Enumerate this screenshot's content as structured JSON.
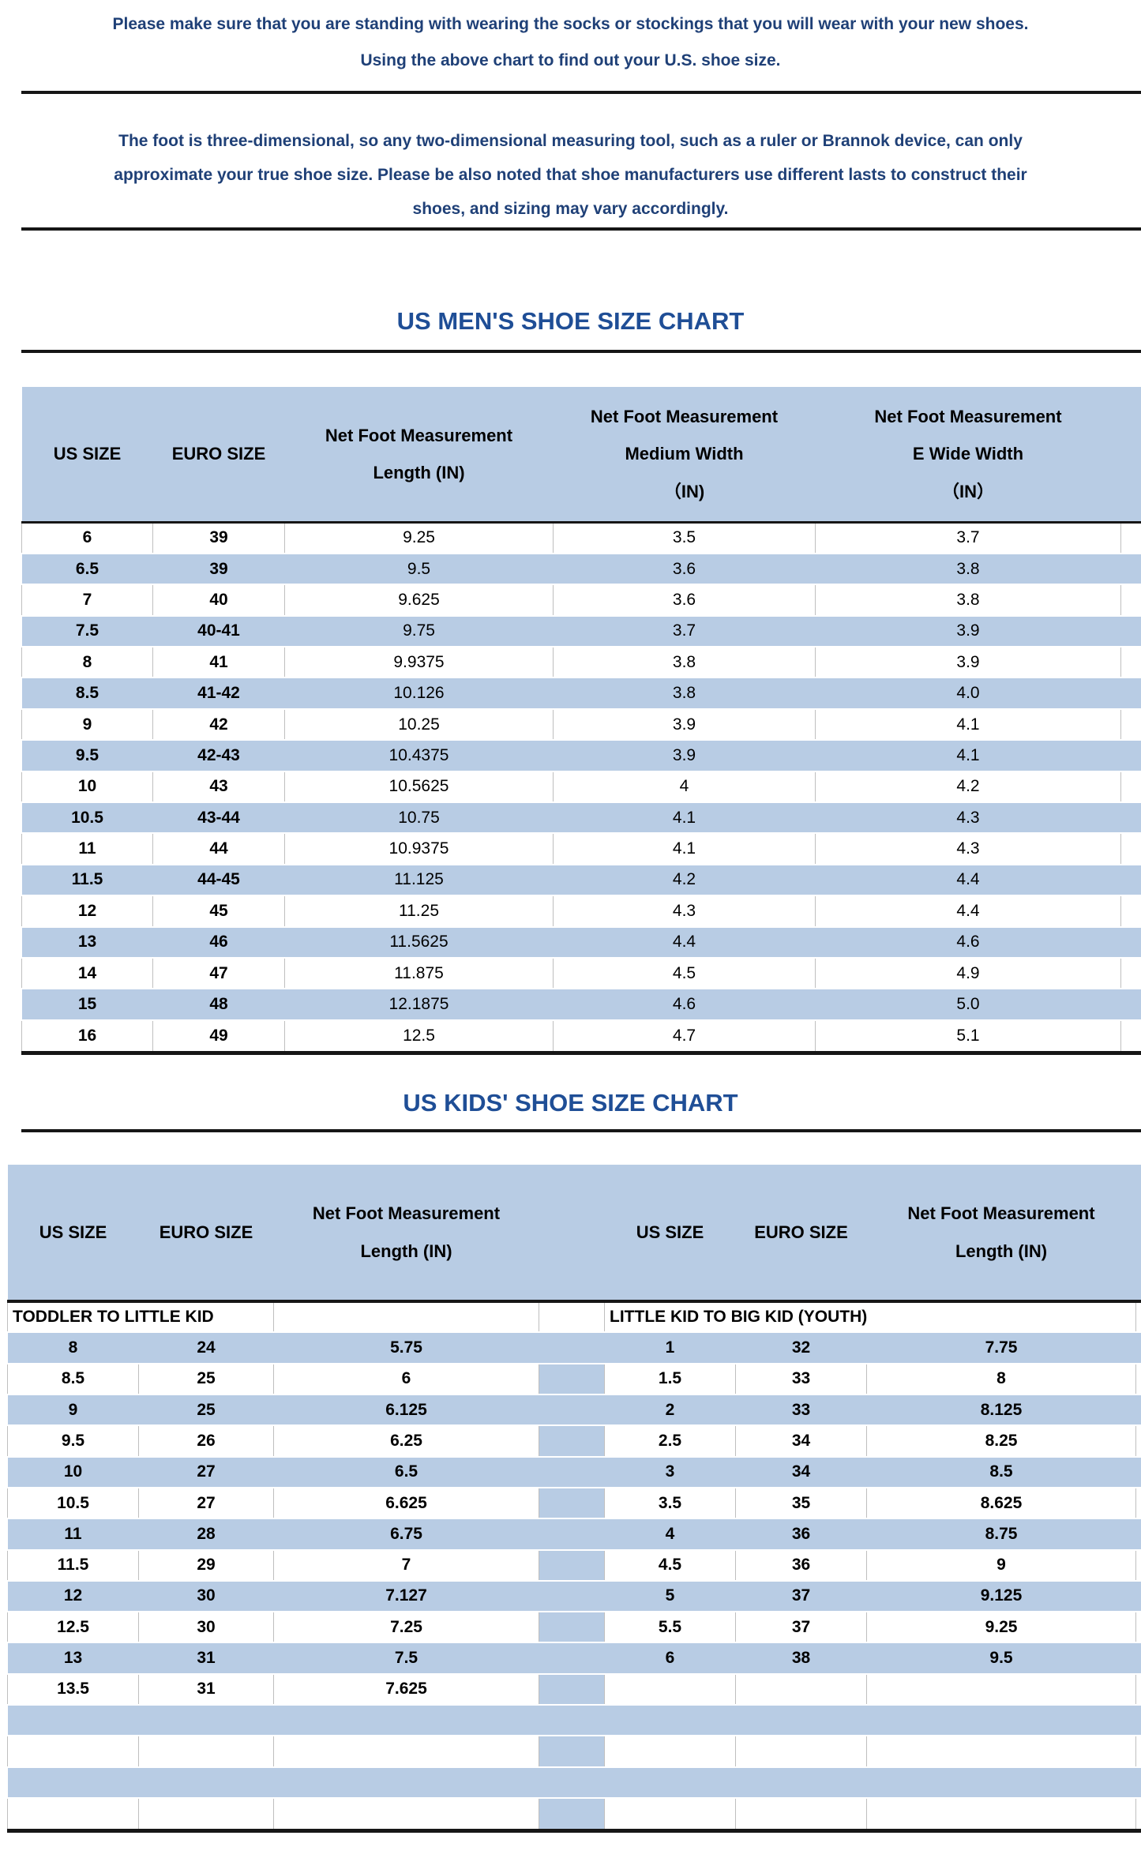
{
  "colors": {
    "accent_fill": "#b8cce4",
    "title_blue": "#1f4e96",
    "note_blue": "#1f4077",
    "line_black": "#161616",
    "cell_border_gray": "#bfbfbf"
  },
  "intro_note": {
    "lines": [
      "Please make sure that you are standing with wearing the socks or stockings that you will wear with your new shoes.",
      "Using the above chart to find out your U.S. shoe size."
    ]
  },
  "disclaimer_note": {
    "lines": [
      "The foot is three-dimensional, so any two-dimensional measuring tool, such as a ruler or Brannok device, can only",
      "approximate your true shoe size. Please be also noted that shoe manufacturers use different lasts to construct their",
      "shoes, and sizing may vary accordingly."
    ]
  },
  "mens": {
    "title": "US MEN'S SHOE SIZE CHART",
    "columns": [
      [
        "US SIZE"
      ],
      [
        "EURO SIZE"
      ],
      [
        "Net Foot Measurement",
        "Length (IN)"
      ],
      [
        "Net Foot Measurement",
        "Medium Width",
        "（IN)"
      ],
      [
        "Net Foot Measurement",
        "E Wide Width",
        "（IN）"
      ]
    ],
    "rows": [
      [
        "6",
        "39",
        "9.25",
        "3.5",
        "3.7"
      ],
      [
        "6.5",
        "39",
        "9.5",
        "3.6",
        "3.8"
      ],
      [
        "7",
        "40",
        "9.625",
        "3.6",
        "3.8"
      ],
      [
        "7.5",
        "40-41",
        "9.75",
        "3.7",
        "3.9"
      ],
      [
        "8",
        "41",
        "9.9375",
        "3.8",
        "3.9"
      ],
      [
        "8.5",
        "41-42",
        "10.126",
        "3.8",
        "4.0"
      ],
      [
        "9",
        "42",
        "10.25",
        "3.9",
        "4.1"
      ],
      [
        "9.5",
        "42-43",
        "10.4375",
        "3.9",
        "4.1"
      ],
      [
        "10",
        "43",
        "10.5625",
        "4",
        "4.2"
      ],
      [
        "10.5",
        "43-44",
        "10.75",
        "4.1",
        "4.3"
      ],
      [
        "11",
        "44",
        "10.9375",
        "4.1",
        "4.3"
      ],
      [
        "11.5",
        "44-45",
        "11.125",
        "4.2",
        "4.4"
      ],
      [
        "12",
        "45",
        "11.25",
        "4.3",
        "4.4"
      ],
      [
        "13",
        "46",
        "11.5625",
        "4.4",
        "4.6"
      ],
      [
        "14",
        "47",
        "11.875",
        "4.5",
        "4.9"
      ],
      [
        "15",
        "48",
        "12.1875",
        "4.6",
        "5.0"
      ],
      [
        "16",
        "49",
        "12.5",
        "4.7",
        "5.1"
      ]
    ]
  },
  "kids": {
    "title": "US KIDS' SHOE SIZE CHART",
    "columns_left": [
      [
        "US SIZE"
      ],
      [
        "EURO SIZE"
      ],
      [
        "Net Foot Measurement",
        "Length (IN)"
      ]
    ],
    "columns_right": [
      [
        "US SIZE"
      ],
      [
        "EURO SIZE"
      ],
      [
        "Net Foot Measurement",
        "Length (IN)"
      ]
    ],
    "left_section_label": "TODDLER TO LITTLE KID",
    "right_section_label": "LITTLE KID TO BIG KID (YOUTH)",
    "rows": [
      {
        "left": [
          "8",
          "24",
          "5.75"
        ],
        "right": [
          "1",
          "32",
          "7.75"
        ]
      },
      {
        "left": [
          "8.5",
          "25",
          "6"
        ],
        "right": [
          "1.5",
          "33",
          "8"
        ]
      },
      {
        "left": [
          "9",
          "25",
          "6.125"
        ],
        "right": [
          "2",
          "33",
          "8.125"
        ]
      },
      {
        "left": [
          "9.5",
          "26",
          "6.25"
        ],
        "right": [
          "2.5",
          "34",
          "8.25"
        ]
      },
      {
        "left": [
          "10",
          "27",
          "6.5"
        ],
        "right": [
          "3",
          "34",
          "8.5"
        ]
      },
      {
        "left": [
          "10.5",
          "27",
          "6.625"
        ],
        "right": [
          "3.5",
          "35",
          "8.625"
        ]
      },
      {
        "left": [
          "11",
          "28",
          "6.75"
        ],
        "right": [
          "4",
          "36",
          "8.75"
        ]
      },
      {
        "left": [
          "11.5",
          "29",
          "7"
        ],
        "right": [
          "4.5",
          "36",
          "9"
        ]
      },
      {
        "left": [
          "12",
          "30",
          "7.127"
        ],
        "right": [
          "5",
          "37",
          "9.125"
        ]
      },
      {
        "left": [
          "12.5",
          "30",
          "7.25"
        ],
        "right": [
          "5.5",
          "37",
          "9.25"
        ]
      },
      {
        "left": [
          "13",
          "31",
          "7.5"
        ],
        "right": [
          "6",
          "38",
          "9.5"
        ]
      },
      {
        "left": [
          "13.5",
          "31",
          "7.625"
        ],
        "right": [
          "",
          "",
          ""
        ]
      },
      {
        "left": [
          "",
          "",
          ""
        ],
        "right": [
          "",
          "",
          ""
        ]
      },
      {
        "left": [
          "",
          "",
          ""
        ],
        "right": [
          "",
          "",
          ""
        ]
      },
      {
        "left": [
          "",
          "",
          ""
        ],
        "right": [
          "",
          "",
          ""
        ]
      },
      {
        "left": [
          "",
          "",
          ""
        ],
        "right": [
          "",
          "",
          ""
        ]
      }
    ]
  }
}
